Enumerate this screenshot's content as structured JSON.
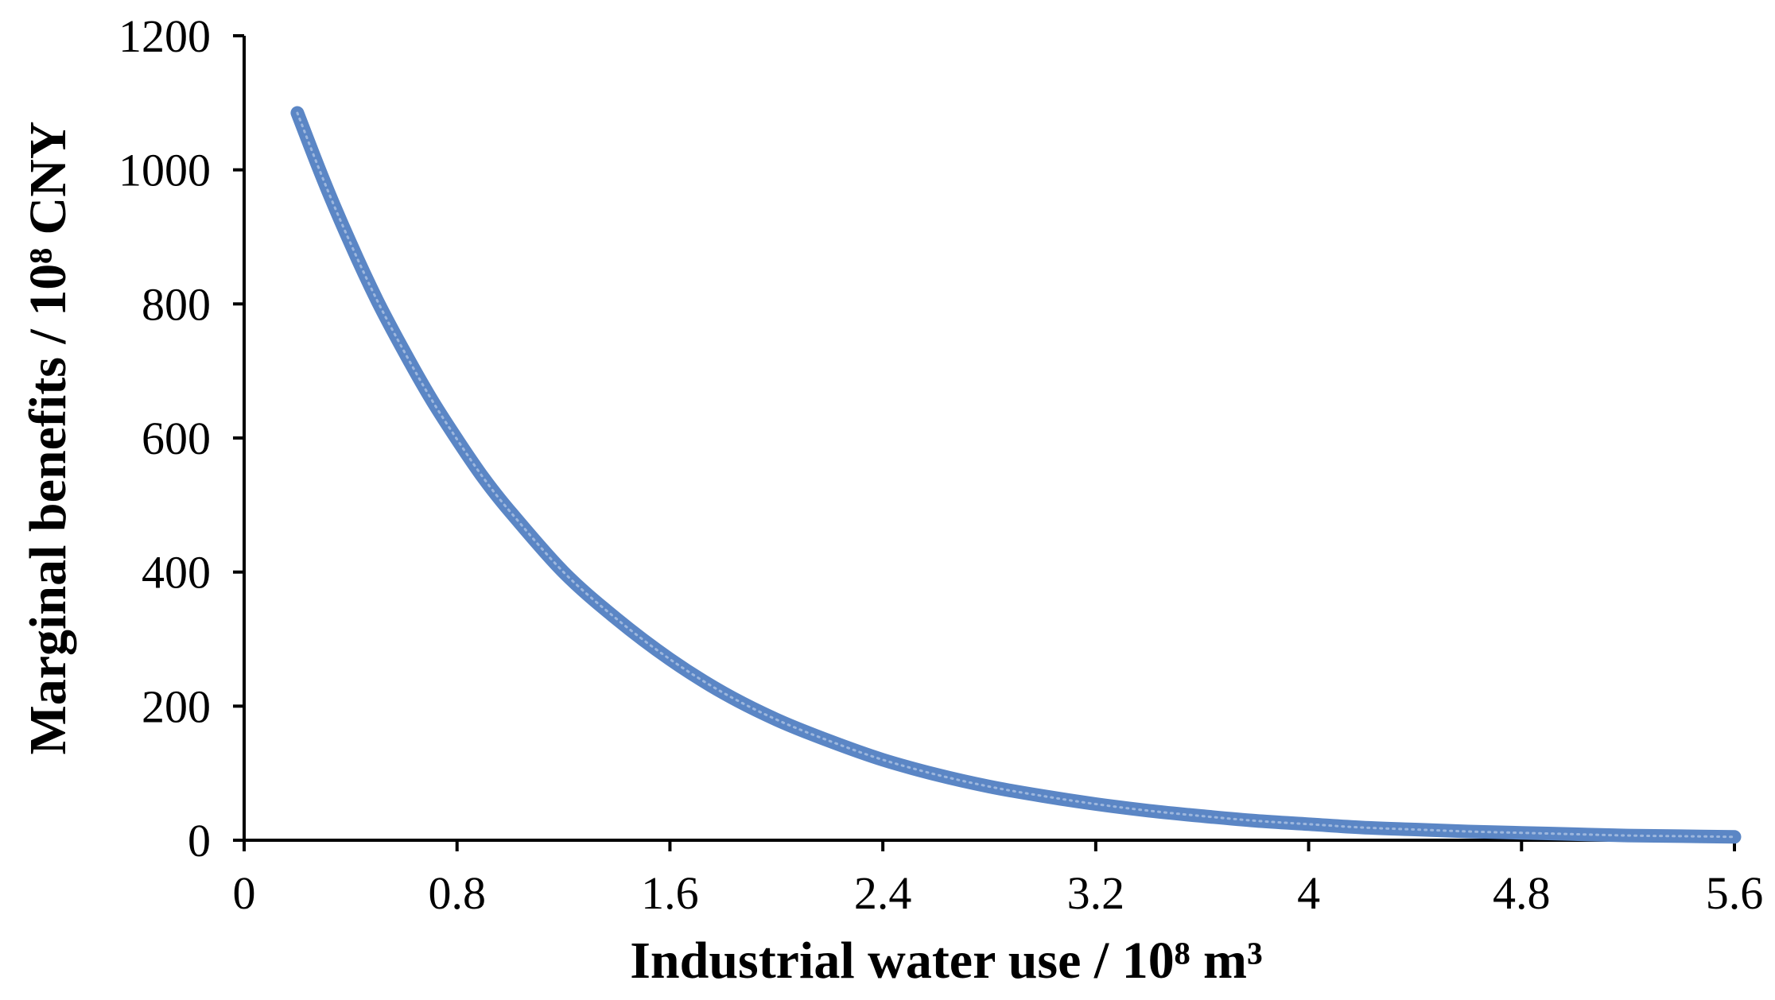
{
  "chart_data": {
    "type": "line",
    "title": "",
    "xlabel": "Industrial water use / 10⁸ m³",
    "ylabel": "Marginal benefits / 10⁸ CNY",
    "xlim": [
      0,
      5.6
    ],
    "ylim": [
      0,
      1200
    ],
    "xticks": [
      "0",
      "0.8",
      "1.6",
      "2.4",
      "3.2",
      "4",
      "4.8",
      "5.6"
    ],
    "yticks": [
      "0",
      "200",
      "400",
      "600",
      "800",
      "1000",
      "1200"
    ],
    "grid": false,
    "legend": "none",
    "series": [
      {
        "color": "#5b86c5",
        "x": [
          0.2,
          0.3,
          0.4,
          0.5,
          0.6,
          0.7,
          0.8,
          0.9,
          1.0,
          1.2,
          1.4,
          1.6,
          1.8,
          2.0,
          2.2,
          2.4,
          2.6,
          2.8,
          3.0,
          3.2,
          3.4,
          3.6,
          3.8,
          4.0,
          4.2,
          4.4,
          4.6,
          4.8,
          5.0,
          5.2,
          5.4,
          5.6
        ],
        "y": [
          1085,
          983,
          890,
          805,
          730,
          660,
          598,
          540,
          490,
          400,
          330,
          270,
          220,
          180,
          148,
          120,
          98,
          80,
          66,
          54,
          44,
          36,
          29,
          24,
          19,
          16,
          13,
          11,
          9,
          7,
          6,
          5
        ]
      }
    ]
  }
}
